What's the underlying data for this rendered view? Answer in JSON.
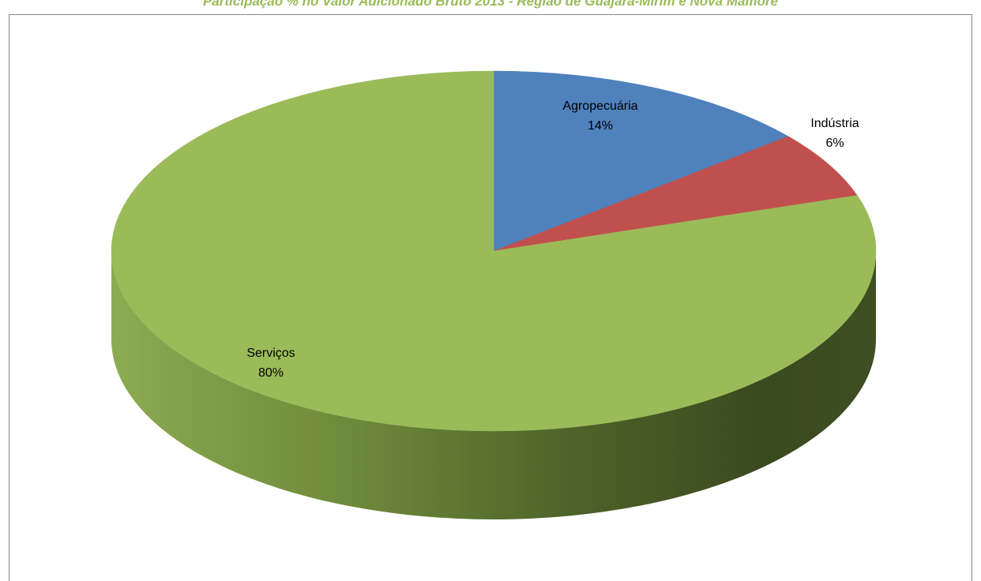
{
  "chart_data": {
    "type": "pie",
    "title": "Participação % no Valor Adicionado Bruto 2013 - Região de Guajará-Mirim e Nova Mamoré",
    "categories": [
      "Agropecuária",
      "Indústria",
      "Serviços"
    ],
    "values": [
      14,
      6,
      80
    ],
    "value_labels": [
      "14%",
      "6%",
      "80%"
    ],
    "colors": [
      "#4f81bd",
      "#c0504d",
      "#9bbb59"
    ],
    "side_colors": [
      "#385d8a",
      "#8c3836",
      "#3a4a1f"
    ],
    "style": "3d",
    "legend": "none"
  }
}
